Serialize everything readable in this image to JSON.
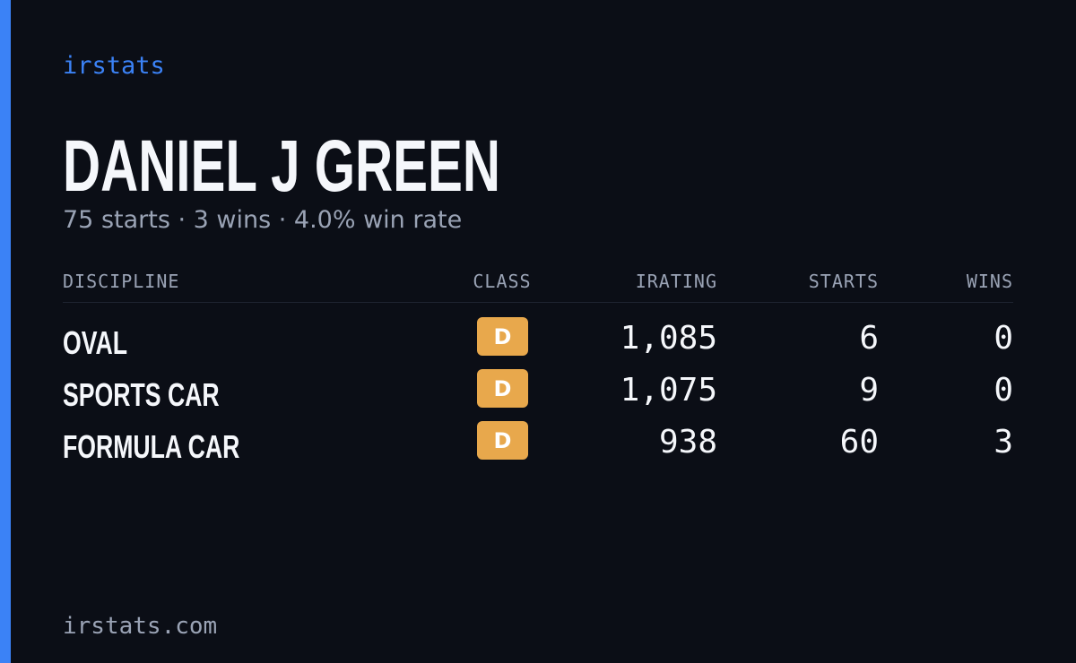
{
  "brand": "irstats",
  "header": {
    "name": "DANIEL J GREEN",
    "summary": "75 starts · 3 wins · 4.0% win rate"
  },
  "table": {
    "columns": [
      "DISCIPLINE",
      "CLASS",
      "IRATING",
      "STARTS",
      "WINS"
    ],
    "rows": [
      [
        "OVAL",
        "D",
        "1,085",
        "6",
        "0"
      ],
      [
        "SPORTS CAR",
        "D",
        "1,075",
        "9",
        "0"
      ],
      [
        "FORMULA CAR",
        "D",
        "938",
        "60",
        "3"
      ]
    ]
  },
  "footer": "irstats.com"
}
